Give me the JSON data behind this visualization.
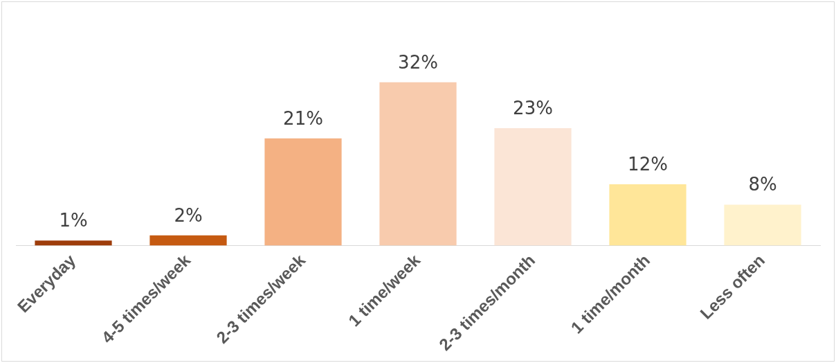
{
  "chart_data": {
    "type": "bar",
    "categories": [
      "Everyday",
      "4-5 times/week",
      "2-3 times/week",
      "1 time/week",
      "2-3 times/month",
      "1 time/month",
      "Less often"
    ],
    "values": [
      1,
      2,
      21,
      32,
      23,
      12,
      8
    ],
    "colors": [
      "#9e3d0b",
      "#c55a11",
      "#f4b183",
      "#f8cbad",
      "#fbe5d6",
      "#ffe699",
      "#fff2cc"
    ],
    "value_labels": [
      "1%",
      "2%",
      "21%",
      "32%",
      "23%",
      "12%",
      "8%"
    ],
    "grid": false,
    "legend": false
  }
}
